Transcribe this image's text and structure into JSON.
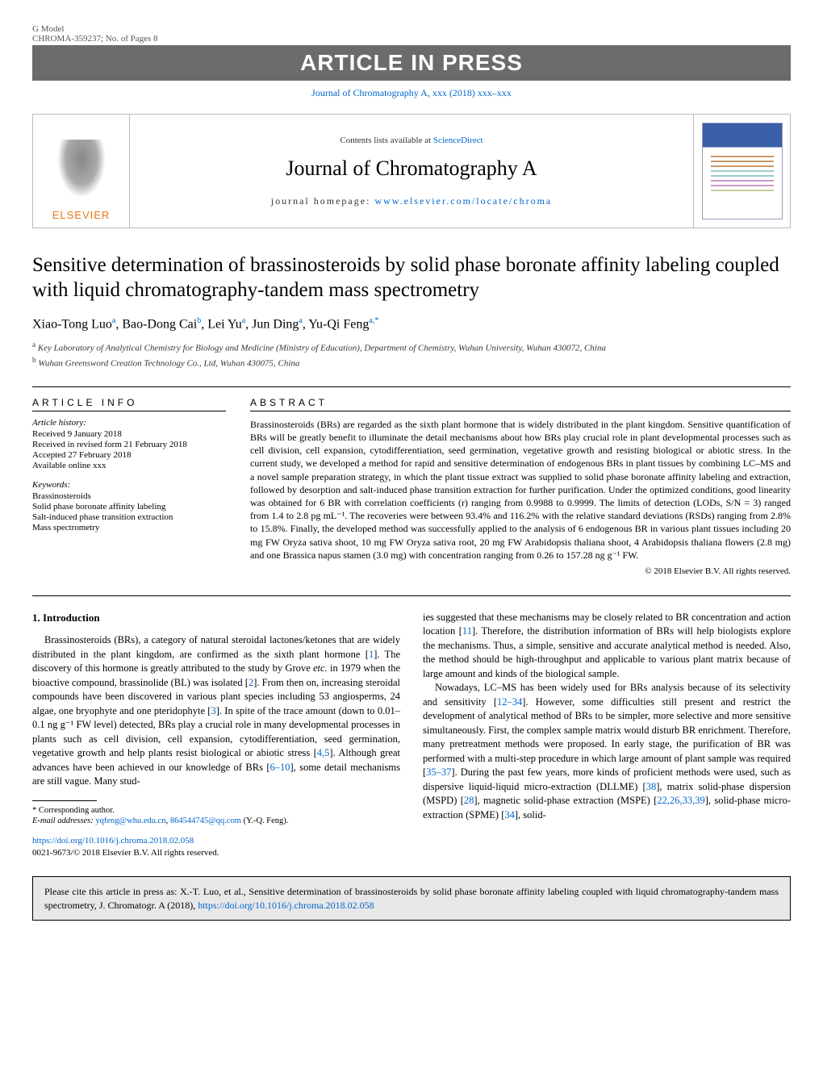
{
  "header": {
    "gmodel": "G Model",
    "refid": "CHROMA-359237;   No. of Pages 8",
    "press_banner": "ARTICLE IN PRESS",
    "journal_link": "Journal of Chromatography A, xxx (2018) xxx–xxx"
  },
  "journal_box": {
    "elsevier": "ELSEVIER",
    "contents": "Contents lists available at ",
    "sciencedirect": "ScienceDirect",
    "title": "Journal of Chromatography A",
    "homepage_label": "journal homepage: ",
    "homepage_url": "www.elsevier.com/locate/chroma"
  },
  "article": {
    "title": "Sensitive determination of brassinosteroids by solid phase boronate affinity labeling coupled with liquid chromatography-tandem mass spectrometry",
    "authors_html": "Xiao-Tong Luo<sup>a</sup>, Bao-Dong Cai<sup>b</sup>, Lei Yu<sup>a</sup>, Jun Ding<sup>a</sup>, Yu-Qi Feng<sup>a,*</sup>",
    "affil_a": "Key Laboratory of Analytical Chemistry for Biology and Medicine (Ministry of Education), Department of Chemistry, Wuhan University, Wuhan 430072, China",
    "affil_b": "Wuhan Greensword Creation Technology Co., Ltd, Wuhan 430075, China"
  },
  "info": {
    "head": "ARTICLE INFO",
    "history_label": "Article history:",
    "h1": "Received 9 January 2018",
    "h2": "Received in revised form 21 February 2018",
    "h3": "Accepted 27 February 2018",
    "h4": "Available online xxx",
    "keywords_label": "Keywords:",
    "k1": "Brassinosteroids",
    "k2": "Solid phase boronate affinity labeling",
    "k3": "Salt-induced phase transition extraction",
    "k4": "Mass spectrometry"
  },
  "abstract": {
    "head": "ABSTRACT",
    "text": "Brassinosteroids (BRs) are regarded as the sixth plant hormone that is widely distributed in the plant kingdom. Sensitive quantification of BRs will be greatly benefit to illuminate the detail mechanisms about how BRs play crucial role in plant developmental processes such as cell division, cell expansion, cytodifferentiation, seed germination, vegetative growth and resisting biological or abiotic stress. In the current study, we developed a method for rapid and sensitive determination of endogenous BRs in plant tissues by combining LC–MS and a novel sample preparation strategy, in which the plant tissue extract was supplied to solid phase boronate affinity labeling and extraction, followed by desorption and salt-induced phase transition extraction for further purification. Under the optimized conditions, good linearity was obtained for 6 BR with correlation coefficients (r) ranging from 0.9988 to 0.9999. The limits of detection (LODs, S/N = 3) ranged from 1.4 to 2.8 pg mL⁻¹. The recoveries were between 93.4% and 116.2% with the relative standard deviations (RSDs) ranging from 2.8% to 15.8%. Finally, the developed method was successfully applied to the analysis of 6 endogenous BR in various plant tissues including 20 mg FW Oryza sativa shoot, 10 mg FW Oryza sativa root, 20 mg FW Arabidopsis thaliana shoot, 4 Arabidopsis thaliana flowers (2.8 mg) and one Brassica napus stamen (3.0 mg) with concentration ranging from 0.26 to 157.28 ng g⁻¹ FW.",
    "copyright": "© 2018 Elsevier B.V. All rights reserved."
  },
  "body": {
    "sec1_title": "1. Introduction",
    "col1_p1": "Brassinosteroids (BRs), a category of natural steroidal lactones/ketones that are widely distributed in the plant kingdom, are confirmed as the sixth plant hormone [1]. The discovery of this hormone is greatly attributed to the study by Grove etc. in 1979 when the bioactive compound, brassinolide (BL) was isolated [2]. From then on, increasing steroidal compounds have been discovered in various plant species including 53 angiosperms, 24 algae, one bryophyte and one pteridophyte [3]. In spite of the trace amount (down to 0.01–0.1 ng g⁻¹ FW level) detected, BRs play a crucial role in many developmental processes in plants such as cell division, cell expansion, cytodifferentiation, seed germination, vegetative growth and help plants resist biological or abiotic stress [4,5]. Although great advances have been achieved in our knowledge of BRs [6–10], some detail mechanisms are still vague. Many stud-",
    "col2_p1": "ies suggested that these mechanisms may be closely related to BR concentration and action location [11]. Therefore, the distribution information of BRs will help biologists explore the mechanisms. Thus, a simple, sensitive and accurate analytical method is needed. Also, the method should be high-throughput and applicable to various plant matrix because of large amount and kinds of the biological sample.",
    "col2_p2": "Nowadays, LC–MS has been widely used for BRs analysis because of its selectivity and sensitivity [12–34]. However, some difficulties still present and restrict the development of analytical method of BRs to be simpler, more selective and more sensitive simultaneously. First, the complex sample matrix would disturb BR enrichment. Therefore, many pretreatment methods were proposed. In early stage, the purification of BR was performed with a multi-step procedure in which large amount of plant sample was required [35–37]. During the past few years, more kinds of proficient methods were used, such as dispersive liquid-liquid micro-extraction (DLLME) [38], matrix solid-phase dispersion (MSPD) [28], magnetic solid-phase extraction (MSPE) [22,26,33,39], solid-phase micro-extraction (SPME) [34], solid-"
  },
  "footnote": {
    "corr": "* Corresponding author.",
    "email_label": "E-mail addresses: ",
    "email1": "yqfeng@whu.edu.cn",
    "email2": "864544745@qq.com",
    "email_name": " (Y.-Q. Feng)."
  },
  "doi": {
    "url": "https://doi.org/10.1016/j.chroma.2018.02.058",
    "line2": "0021-9673/© 2018 Elsevier B.V. All rights reserved."
  },
  "cite": {
    "text": "Please cite this article in press as: X.-T. Luo, et al., Sensitive determination of brassinosteroids by solid phase boronate affinity labeling coupled with liquid chromatography-tandem mass spectrometry, J. Chromatogr. A (2018), ",
    "url": "https://doi.org/10.1016/j.chroma.2018.02.058"
  },
  "refs": {
    "r1": "1",
    "r2": "2",
    "r3": "3",
    "r4": "4,5",
    "r5": "6–10",
    "r6": "11",
    "r7": "12–34",
    "r8": "35–37",
    "r9": "38",
    "r10": "28",
    "r11": "22,26,33,39",
    "r12": "34"
  }
}
